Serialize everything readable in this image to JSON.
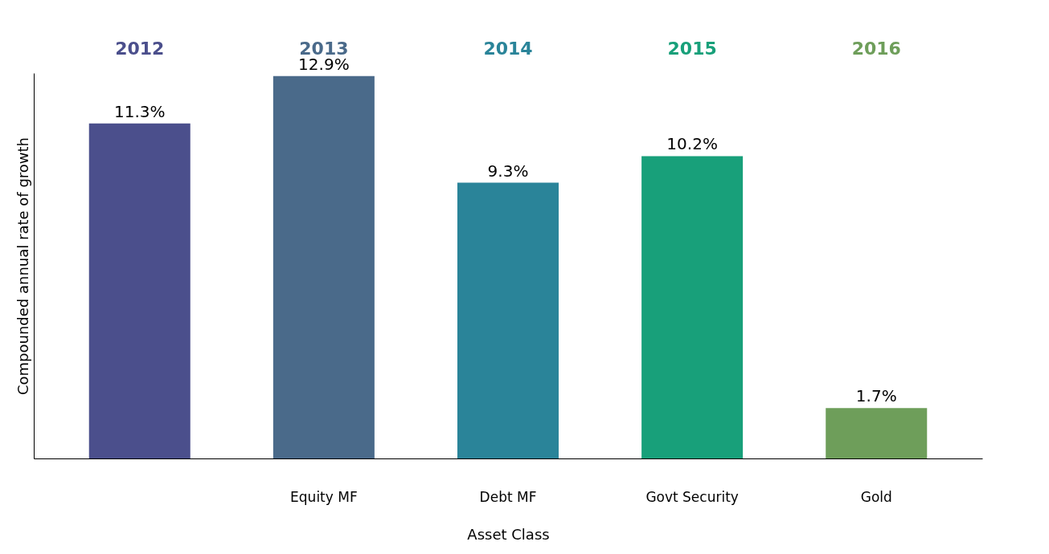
{
  "chart_data": {
    "type": "bar",
    "xlabel": "Asset Class",
    "ylabel": "Compounded annual rate of growth",
    "categories": [
      null,
      "Equity MF",
      "Debt MF",
      "Govt Security",
      "Gold"
    ],
    "values": [
      11.3,
      12.9,
      9.3,
      10.2,
      1.7
    ],
    "colors": [
      "#4b4f8c",
      "#4a6a8a",
      "#2a8499",
      "#18a07a",
      "#6e9e5a"
    ],
    "value_labels": [
      "11.3%",
      "12.9%",
      "9.3%",
      "10.2%",
      "1.7%"
    ],
    "annotations": [
      "2012",
      "2013",
      "2014",
      "2015",
      "2016"
    ],
    "grid": false
  }
}
